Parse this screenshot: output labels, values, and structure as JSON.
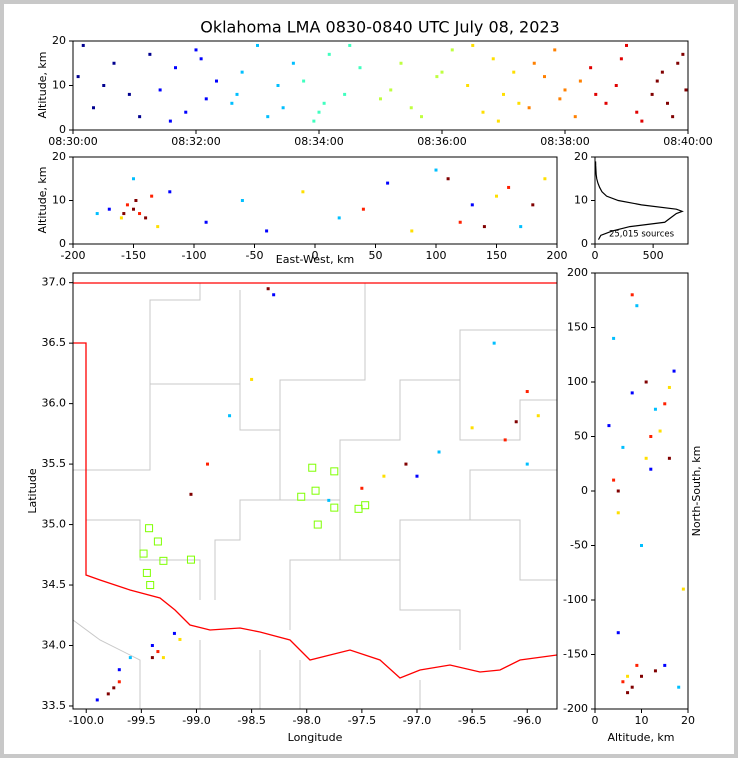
{
  "chart_data": [
    {
      "type": "scatter",
      "title": "Oklahoma LMA 0830-0840 UTC July 08, 2023",
      "y_label": "Altitude, km",
      "xlim": [
        "08:30:00",
        "08:40:00"
      ],
      "xticks": [
        "08:30:00",
        "08:32:00",
        "08:34:00",
        "08:36:00",
        "08:38:00",
        "08:40:00"
      ],
      "ylim": [
        0,
        20
      ],
      "yticks": [
        0,
        10,
        20
      ],
      "series": [
        {
          "color": "#00008f",
          "x": [
            "08:30:05",
            "08:30:20",
            "08:30:40",
            "08:30:55",
            "08:31:05",
            "08:31:15",
            "08:30:30",
            "08:30:10"
          ],
          "y": [
            12,
            5,
            15,
            8,
            3,
            17,
            10,
            19
          ]
        },
        {
          "color": "#0000ff",
          "x": [
            "08:31:25",
            "08:31:40",
            "08:31:50",
            "08:32:00",
            "08:32:10",
            "08:32:20",
            "08:31:35",
            "08:32:05"
          ],
          "y": [
            9,
            14,
            4,
            18,
            7,
            11,
            2,
            16
          ]
        },
        {
          "color": "#00bfff",
          "x": [
            "08:32:35",
            "08:32:45",
            "08:33:00",
            "08:33:10",
            "08:33:20",
            "08:33:35",
            "08:32:40",
            "08:33:25"
          ],
          "y": [
            6,
            13,
            19,
            3,
            10,
            15,
            8,
            5
          ]
        },
        {
          "color": "#40ffbf",
          "x": [
            "08:33:45",
            "08:34:00",
            "08:34:10",
            "08:34:25",
            "08:34:40",
            "08:33:55",
            "08:34:30",
            "08:34:05"
          ],
          "y": [
            11,
            4,
            17,
            8,
            14,
            2,
            19,
            6
          ]
        },
        {
          "color": "#bfff40",
          "x": [
            "08:35:00",
            "08:35:20",
            "08:35:40",
            "08:35:55",
            "08:36:10",
            "08:35:10",
            "08:35:30",
            "08:36:00"
          ],
          "y": [
            7,
            15,
            3,
            12,
            18,
            9,
            5,
            13
          ]
        },
        {
          "color": "#ffdf00",
          "x": [
            "08:36:25",
            "08:36:40",
            "08:36:50",
            "08:37:00",
            "08:37:10",
            "08:36:30",
            "08:36:55",
            "08:37:15"
          ],
          "y": [
            10,
            4,
            16,
            8,
            13,
            19,
            2,
            6
          ]
        },
        {
          "color": "#ff8000",
          "x": [
            "08:37:25",
            "08:37:40",
            "08:37:50",
            "08:38:00",
            "08:38:10",
            "08:37:30",
            "08:37:55",
            "08:38:15"
          ],
          "y": [
            5,
            12,
            18,
            9,
            3,
            15,
            7,
            11
          ]
        },
        {
          "color": "#e00000",
          "x": [
            "08:38:25",
            "08:38:40",
            "08:38:50",
            "08:39:00",
            "08:39:10",
            "08:38:30",
            "08:38:55",
            "08:39:15"
          ],
          "y": [
            14,
            6,
            10,
            19,
            4,
            8,
            16,
            2
          ]
        },
        {
          "color": "#800000",
          "x": [
            "08:39:25",
            "08:39:35",
            "08:39:45",
            "08:39:55",
            "08:39:30",
            "08:39:40",
            "08:39:50",
            "08:39:58"
          ],
          "y": [
            8,
            13,
            3,
            17,
            11,
            6,
            15,
            9
          ]
        }
      ]
    },
    {
      "type": "scatter",
      "x_label": "East-West, km",
      "y_label": "Altitude, km",
      "xlim": [
        -200,
        200
      ],
      "xticks": [
        -200,
        -150,
        -100,
        -50,
        0,
        50,
        100,
        150,
        200
      ],
      "ylim": [
        0,
        20
      ],
      "yticks": [
        0,
        10,
        20
      ],
      "series": [
        {
          "color": "#0000ff",
          "x": [
            -170,
            -120,
            -90,
            60,
            130,
            -40
          ],
          "y": [
            8,
            12,
            5,
            14,
            9,
            3
          ]
        },
        {
          "color": "#00bfff",
          "x": [
            -150,
            -60,
            20,
            100,
            170,
            -180
          ],
          "y": [
            15,
            10,
            6,
            17,
            4,
            7
          ]
        },
        {
          "color": "#ffdf00",
          "x": [
            -160,
            -130,
            -10,
            80,
            150,
            190
          ],
          "y": [
            6,
            4,
            12,
            3,
            11,
            15
          ]
        },
        {
          "color": "#ff2000",
          "x": [
            -155,
            -145,
            -135,
            120,
            160,
            40
          ],
          "y": [
            9,
            7,
            11,
            5,
            13,
            8
          ]
        },
        {
          "color": "#800000",
          "x": [
            -150,
            -148,
            -140,
            -158,
            140,
            180,
            110
          ],
          "y": [
            8,
            10,
            6,
            7,
            4,
            9,
            15
          ]
        }
      ]
    },
    {
      "type": "line",
      "annotation": "25,015 sources",
      "xlim": [
        0,
        800
      ],
      "xticks": [
        0,
        500
      ],
      "ylim": [
        0,
        20
      ],
      "yticks": [
        0,
        10,
        20
      ],
      "series": [
        {
          "color": "#000000",
          "x": [
            30,
            50,
            150,
            300,
            600,
            650,
            700,
            750,
            700,
            400,
            200,
            100,
            60,
            40,
            25,
            15,
            10,
            8,
            6,
            5
          ],
          "y": [
            1,
            2,
            3,
            4,
            5,
            6,
            7,
            7.5,
            8,
            9,
            10,
            11,
            12,
            13,
            14,
            15,
            16,
            17,
            18,
            19
          ]
        }
      ]
    },
    {
      "type": "scatter",
      "x_label": "Longitude",
      "y_label": "Latitude",
      "xlim": [
        -100.12,
        -95.73
      ],
      "xticks": [
        {
          "value": -100,
          "label": "-100.0"
        },
        -99.5,
        {
          "value": -99,
          "label": "-99.0"
        },
        -98.5,
        {
          "value": -98,
          "label": "-98.0"
        },
        -97.5,
        {
          "value": -97,
          "label": "-97.0"
        },
        -96.5,
        {
          "value": -96,
          "label": "-96.0"
        }
      ],
      "ylim": [
        33.475,
        37.08
      ],
      "yticks": [
        33.5,
        {
          "value": 34,
          "label": "34.0"
        },
        34.5,
        {
          "value": 35,
          "label": "35.0"
        },
        35.5,
        {
          "value": 36,
          "label": "36.0"
        },
        36.5,
        {
          "value": 37,
          "label": "37.0"
        }
      ],
      "series": [
        {
          "color": "#0000ff",
          "x": [
            -99.7,
            -99.2,
            -99.4,
            -97.0,
            -98.3,
            -99.9
          ],
          "y": [
            33.8,
            34.1,
            34.0,
            35.4,
            36.9,
            33.55
          ]
        },
        {
          "color": "#00bfff",
          "x": [
            -99.6,
            -96.0,
            -96.3,
            -98.7,
            -97.8,
            -96.8
          ],
          "y": [
            33.9,
            35.5,
            36.5,
            35.9,
            35.2,
            35.6
          ]
        },
        {
          "color": "#ffdf00",
          "x": [
            -99.15,
            -96.5,
            -98.5,
            -99.3,
            -97.3,
            -95.9
          ],
          "y": [
            34.05,
            35.8,
            36.2,
            33.9,
            35.4,
            35.9
          ]
        },
        {
          "color": "#ff2000",
          "x": [
            -99.7,
            -99.35,
            -96.2,
            -98.9,
            -97.5,
            -96.0
          ],
          "y": [
            33.7,
            33.95,
            35.7,
            35.5,
            35.3,
            36.1
          ]
        },
        {
          "color": "#800000",
          "x": [
            -99.75,
            -99.8,
            -99.4,
            -96.1,
            -98.35,
            -97.1,
            -99.05
          ],
          "y": [
            33.65,
            33.6,
            33.9,
            35.85,
            36.95,
            35.5,
            35.25
          ]
        },
        {
          "color": "#7fff00",
          "marker": "square",
          "x": [
            -97.95,
            -97.92,
            -97.75,
            -97.75,
            -97.9,
            -98.05,
            -99.43,
            -99.35,
            -99.48,
            -99.3,
            -99.05,
            -99.45,
            -99.42,
            -97.53,
            -97.47
          ],
          "y": [
            35.47,
            35.28,
            35.44,
            35.14,
            35.0,
            35.23,
            34.97,
            34.86,
            34.76,
            34.7,
            34.71,
            34.6,
            34.5,
            35.13,
            35.16
          ]
        }
      ]
    },
    {
      "type": "scatter",
      "x_label": "Altitude, km",
      "y_label": "North-South, km",
      "xlim": [
        0,
        20
      ],
      "xticks": [
        0,
        10,
        20
      ],
      "ylim": [
        -200,
        200
      ],
      "yticks": [
        -200,
        -150,
        -100,
        -50,
        0,
        50,
        100,
        150,
        200
      ],
      "series": [
        {
          "color": "#0000ff",
          "x": [
            5,
            8,
            12,
            15,
            3,
            17
          ],
          "y": [
            -130,
            90,
            20,
            -160,
            60,
            110
          ]
        },
        {
          "color": "#00bfff",
          "x": [
            4,
            10,
            6,
            18,
            9,
            13
          ],
          "y": [
            140,
            -50,
            40,
            -180,
            170,
            75
          ]
        },
        {
          "color": "#ffdf00",
          "x": [
            7,
            11,
            16,
            5,
            14,
            19
          ],
          "y": [
            -170,
            30,
            95,
            -20,
            55,
            -90
          ]
        },
        {
          "color": "#ff2000",
          "x": [
            6,
            9,
            12,
            4,
            15,
            8
          ],
          "y": [
            -175,
            -160,
            50,
            10,
            80,
            180
          ]
        },
        {
          "color": "#800000",
          "x": [
            8,
            10,
            7,
            13,
            5,
            11,
            16
          ],
          "y": [
            -180,
            -170,
            -185,
            -165,
            0,
            100,
            30
          ]
        }
      ]
    }
  ]
}
